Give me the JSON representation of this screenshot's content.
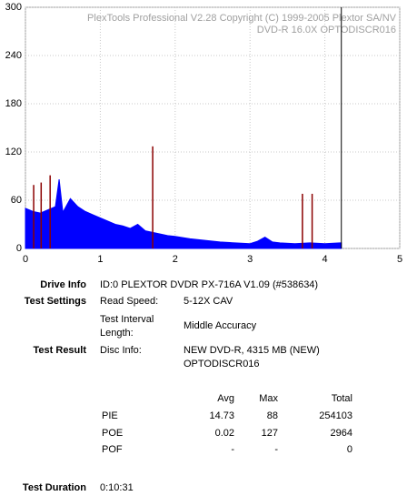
{
  "chart_data": {
    "type": "area",
    "title": "PlexTools Professional V2.28 Copyright (C) 1999-2005 Plextor SA/NV",
    "subtitle": "DVD-R 16.0X OPTODISCR016",
    "series": [
      {
        "name": "PIE",
        "kind": "area",
        "color": "#0000ff",
        "x": [
          0,
          0.1,
          0.2,
          0.3,
          0.4,
          0.45,
          0.5,
          0.6,
          0.7,
          0.8,
          0.9,
          1.0,
          1.1,
          1.2,
          1.3,
          1.4,
          1.5,
          1.6,
          1.7,
          1.8,
          1.9,
          2.0,
          2.2,
          2.4,
          2.6,
          2.8,
          3.0,
          3.1,
          3.2,
          3.3,
          3.4,
          3.6,
          3.8,
          4.0,
          4.2,
          4.22
        ],
        "values": [
          50,
          46,
          44,
          48,
          52,
          86,
          45,
          62,
          52,
          46,
          42,
          38,
          34,
          30,
          28,
          25,
          30,
          22,
          20,
          18,
          16,
          15,
          12,
          10,
          8,
          7,
          6,
          9,
          14,
          8,
          7,
          6,
          7,
          6,
          7,
          7
        ]
      },
      {
        "name": "POE",
        "kind": "spike",
        "color": "#8b0000",
        "x": [
          0.11,
          0.21,
          0.33,
          1.7,
          3.7,
          3.83
        ],
        "values": [
          79,
          82,
          91,
          127,
          68,
          68
        ]
      }
    ],
    "vline": {
      "x": 4.22,
      "color": "#000000"
    },
    "xlim": [
      0,
      5
    ],
    "xticks": [
      0,
      1,
      2,
      3,
      4,
      5
    ],
    "ylim": [
      0,
      300
    ],
    "yticks": [
      0,
      60,
      120,
      180,
      240,
      300
    ],
    "grid": true
  },
  "details": {
    "drive_info": {
      "label": "Drive Info",
      "value": "ID:0 PLEXTOR DVDR PX-716A V1.09 (#538634)"
    },
    "test_settings": {
      "label": "Test Settings",
      "rows": [
        [
          "Read Speed:",
          "5-12X CAV"
        ],
        [
          "Test Interval Length:",
          "Middle Accuracy"
        ]
      ]
    },
    "test_result": {
      "label": "Test Result",
      "rows": [
        [
          "Disc Info:",
          "NEW DVD-R, 4315 MB (NEW) OPTODISCR016"
        ]
      ]
    },
    "table": {
      "columns": [
        "Avg",
        "Max",
        "Total"
      ],
      "rows": [
        {
          "name": "PIE",
          "cells": [
            "14.73",
            "88",
            "254103"
          ]
        },
        {
          "name": "POE",
          "cells": [
            "0.02",
            "127",
            "2964"
          ]
        },
        {
          "name": "POF",
          "cells": [
            "-",
            "-",
            "0"
          ]
        }
      ]
    },
    "test_duration": {
      "label": "Test Duration",
      "value": "0:10:31"
    }
  }
}
